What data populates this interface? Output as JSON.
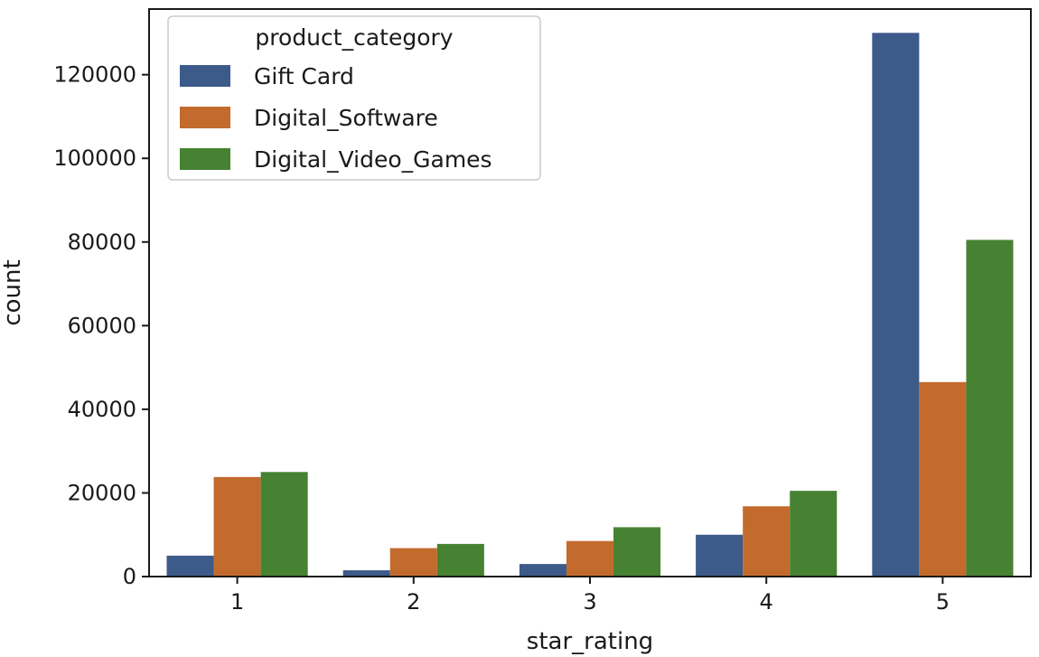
{
  "chart_data": {
    "type": "bar",
    "categories": [
      "1",
      "2",
      "3",
      "4",
      "5"
    ],
    "series": [
      {
        "name": "Gift Card",
        "color": "#3c5a8a",
        "values": [
          5000,
          1500,
          3000,
          10000,
          130000
        ]
      },
      {
        "name": "Digital_Software",
        "color": "#c36a2d",
        "values": [
          23800,
          6800,
          8500,
          16800,
          46500
        ]
      },
      {
        "name": "Digital_Video_Games",
        "color": "#468232",
        "values": [
          25000,
          7800,
          11800,
          20500,
          80500
        ]
      }
    ],
    "xlabel": "star_rating",
    "ylabel": "count",
    "ylim": [
      0,
      135700
    ],
    "yticks": [
      0,
      20000,
      40000,
      60000,
      80000,
      100000,
      120000
    ],
    "legend": {
      "title": "product_category",
      "position": "top-left"
    },
    "grid": false
  }
}
